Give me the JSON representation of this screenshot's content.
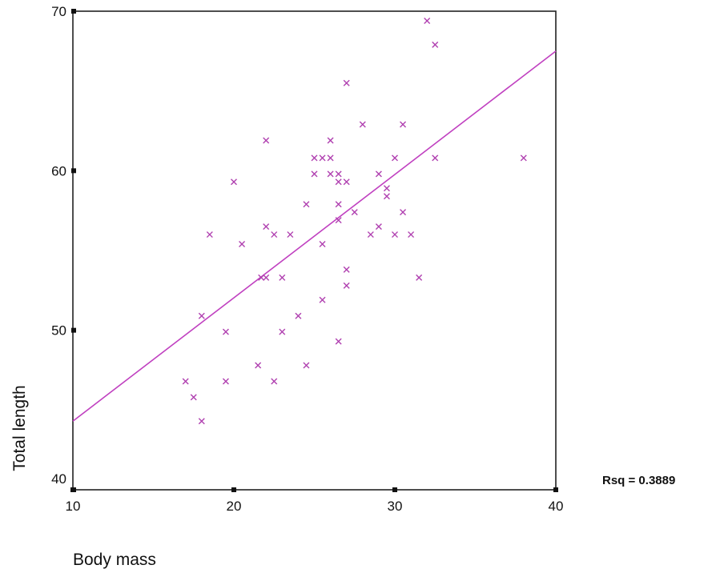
{
  "chart_data": {
    "type": "scatter",
    "xlabel": "Body mass",
    "ylabel": "Total length",
    "xlim": [
      10,
      40
    ],
    "ylim": [
      40,
      70
    ],
    "x_ticks": [
      10,
      20,
      30,
      40
    ],
    "y_ticks": [
      40,
      50,
      60,
      70
    ],
    "grid": false,
    "legend": "none",
    "marker": "x",
    "marker_color": "#b040b0",
    "fit_color": "#c040c0",
    "annotation": "Rsq = 0.3889",
    "fit_line": {
      "x": [
        10,
        40
      ],
      "y": [
        44.3,
        67.5
      ]
    },
    "points": [
      {
        "x": 17.0,
        "y": 46.8
      },
      {
        "x": 17.5,
        "y": 45.8
      },
      {
        "x": 18.0,
        "y": 44.3
      },
      {
        "x": 18.0,
        "y": 50.9
      },
      {
        "x": 18.5,
        "y": 56.0
      },
      {
        "x": 19.5,
        "y": 46.8
      },
      {
        "x": 19.5,
        "y": 49.9
      },
      {
        "x": 20.0,
        "y": 59.3
      },
      {
        "x": 20.5,
        "y": 55.4
      },
      {
        "x": 21.5,
        "y": 47.8
      },
      {
        "x": 21.7,
        "y": 53.3
      },
      {
        "x": 22.0,
        "y": 53.3
      },
      {
        "x": 22.0,
        "y": 56.5
      },
      {
        "x": 22.0,
        "y": 61.9
      },
      {
        "x": 22.5,
        "y": 46.8
      },
      {
        "x": 22.5,
        "y": 56.0
      },
      {
        "x": 23.0,
        "y": 49.9
      },
      {
        "x": 23.0,
        "y": 53.3
      },
      {
        "x": 23.5,
        "y": 56.0
      },
      {
        "x": 24.0,
        "y": 50.9
      },
      {
        "x": 24.5,
        "y": 47.8
      },
      {
        "x": 24.5,
        "y": 57.9
      },
      {
        "x": 25.0,
        "y": 59.8
      },
      {
        "x": 25.0,
        "y": 60.8
      },
      {
        "x": 25.5,
        "y": 51.9
      },
      {
        "x": 25.5,
        "y": 55.4
      },
      {
        "x": 25.5,
        "y": 60.8
      },
      {
        "x": 26.0,
        "y": 59.8
      },
      {
        "x": 26.0,
        "y": 60.8
      },
      {
        "x": 26.0,
        "y": 61.9
      },
      {
        "x": 26.5,
        "y": 49.3
      },
      {
        "x": 26.5,
        "y": 56.9
      },
      {
        "x": 26.5,
        "y": 57.9
      },
      {
        "x": 26.5,
        "y": 59.3
      },
      {
        "x": 26.5,
        "y": 59.8
      },
      {
        "x": 27.0,
        "y": 52.8
      },
      {
        "x": 27.0,
        "y": 53.8
      },
      {
        "x": 27.0,
        "y": 59.3
      },
      {
        "x": 27.0,
        "y": 65.5
      },
      {
        "x": 27.5,
        "y": 57.4
      },
      {
        "x": 28.0,
        "y": 62.9
      },
      {
        "x": 28.5,
        "y": 56.0
      },
      {
        "x": 29.0,
        "y": 56.5
      },
      {
        "x": 29.0,
        "y": 59.8
      },
      {
        "x": 29.5,
        "y": 58.4
      },
      {
        "x": 29.5,
        "y": 58.9
      },
      {
        "x": 30.0,
        "y": 56.0
      },
      {
        "x": 30.0,
        "y": 60.8
      },
      {
        "x": 30.5,
        "y": 57.4
      },
      {
        "x": 30.5,
        "y": 62.9
      },
      {
        "x": 31.0,
        "y": 56.0
      },
      {
        "x": 31.5,
        "y": 53.3
      },
      {
        "x": 32.0,
        "y": 69.4
      },
      {
        "x": 32.5,
        "y": 60.8
      },
      {
        "x": 32.5,
        "y": 67.9
      },
      {
        "x": 38.0,
        "y": 60.8
      }
    ]
  }
}
